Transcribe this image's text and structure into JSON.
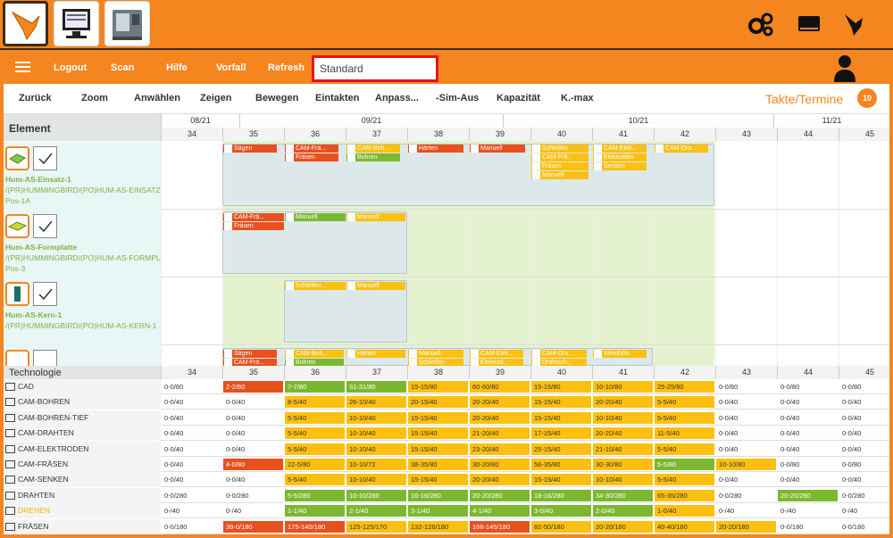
{
  "menu": {
    "logout": "Logout",
    "scan": "Scan",
    "help": "Hilfe",
    "vorfall": "Vorfall",
    "refresh": "Refresh",
    "view_value": "Standard"
  },
  "toolbar": {
    "zurueck": "Zurück",
    "zoom": "Zoom",
    "anwaehlen": "Anwählen",
    "zeigen": "Zeigen",
    "bewegen": "Bewegen",
    "eintakten": "Eintakten",
    "anpass": "Anpass...",
    "sim_aus": "-Sim-Aus",
    "kapazitaet": "Kapazität",
    "kmax": "K.-max",
    "takte": "Takte/Termine",
    "badge": "10"
  },
  "grid": {
    "element_header": "Element",
    "months": [
      "08/21",
      "09/21",
      "10/21",
      "11/21"
    ],
    "weeks": [
      "34",
      "35",
      "36",
      "37",
      "38",
      "39",
      "40",
      "41",
      "42",
      "43",
      "44",
      "45"
    ]
  },
  "elements": [
    {
      "name": "Hum-AS-Einsatz-1",
      "path": "/(PR)HUMMINGBIRD/(PO)HUM-AS-EINSATZ-1",
      "pos": "Pos-1A"
    },
    {
      "name": "Hum-AS-Formplatte",
      "path": "/(PR)HUMMINGBIRD/(PO)HUM-AS-FORMPLA",
      "pos": "Pos-3"
    },
    {
      "name": "Hum-AS-Kern-1",
      "path": "/(PR)HUMMINGBIRD/(PO)HUM-AS-KERN-1",
      "pos": ""
    }
  ],
  "tasks": {
    "r1": [
      "Sägen",
      "CAM-Frä...",
      "Fräsen",
      "CAM-Boh...",
      "Bohren",
      "Härten",
      "Manuell",
      "Schleifen",
      "CAM-Frä...",
      "Fräsen",
      "Manuell",
      "CAM-Elek...",
      "Elektroden",
      "Senken",
      "CAM-Dra..."
    ],
    "r2": [
      "CAM-Frä...",
      "Fräsen",
      "Manuell",
      "Manuell"
    ],
    "r3": [
      "Schleifen...",
      "Manuell"
    ],
    "r4": [
      "Sägen",
      "CAM-Frä...",
      "CAM-Boh...",
      "Bohren",
      "Härten",
      "Manuell",
      "Schleifen",
      "CAM-Elek...",
      "Elektrod...",
      "CAM-Dra...",
      "Drahtsch...",
      "WireEdm"
    ]
  },
  "technologie": {
    "header": "Technologie",
    "rows": [
      {
        "name": "CAD",
        "cells": [
          "0-0/80",
          "2-2/80",
          "7-7/80",
          "31-31/80",
          "15-15/80",
          "60-60/80",
          "15-15/80",
          "10-10/80",
          "25-25/80",
          "0-0/80",
          "0-0/80",
          "0-0/80"
        ]
      },
      {
        "name": "CAM-BOHREN",
        "cells": [
          "0-0/40",
          "0-0/40",
          "8-5/40",
          "26-10/40",
          "20-15/40",
          "20-20/40",
          "15-15/40",
          "20-20/40",
          "5-5/40",
          "0-0/40",
          "0-0/40",
          "0-0/40"
        ]
      },
      {
        "name": "CAM-BOHREN-TIEF",
        "cells": [
          "0-0/40",
          "0-0/40",
          "5-5/40",
          "10-10/40",
          "15-15/40",
          "20-20/40",
          "15-15/40",
          "10-10/40",
          "5-5/40",
          "0-0/40",
          "0-0/40",
          "0-0/40"
        ]
      },
      {
        "name": "CAM-DRAHTEN",
        "cells": [
          "0-0/40",
          "0-0/40",
          "5-5/40",
          "10-10/40",
          "15-15/40",
          "21-20/40",
          "17-15/40",
          "20-20/40",
          "11-5/40",
          "0-0/40",
          "0-0/40",
          "0-0/40"
        ]
      },
      {
        "name": "CAM-ELEKTRODEN",
        "cells": [
          "0-0/40",
          "0-0/40",
          "5-5/40",
          "10-10/40",
          "15-15/40",
          "23-20/40",
          "25-15/40",
          "21-10/40",
          "5-5/40",
          "0-0/40",
          "0-0/40",
          "0-0/40"
        ]
      },
      {
        "name": "CAM-FRÄSEN",
        "cells": [
          "0-0/40",
          "4-0/80",
          "22-5/80",
          "10-10/72",
          "38-35/80",
          "30-20/80",
          "56-35/80",
          "30-30/80",
          "5-5/80",
          "10-10/80",
          "0-0/80",
          "0-0/80"
        ]
      },
      {
        "name": "CAM-SENKEN",
        "cells": [
          "0-0/40",
          "0-0/40",
          "5-5/40",
          "10-10/40",
          "15-15/40",
          "20-20/40",
          "15-15/40",
          "10-10/40",
          "5-5/40",
          "0-0/40",
          "0-0/40",
          "0-0/40"
        ]
      },
      {
        "name": "DRAHTEN",
        "cells": [
          "0-0/280",
          "0-0/280",
          "5-5/280",
          "10-10/280",
          "16-16/280",
          "20-20/280",
          "18-16/280",
          "34-30/280",
          "65-35/280",
          "0-0/280",
          "20-20/280",
          "0-0/280"
        ]
      },
      {
        "name": "DREHEN",
        "cells": [
          "0-/40",
          "0-/40",
          "1-1/40",
          "2-1/40",
          "3-1/40",
          "4-1/40",
          "3-0/40",
          "2-0/40",
          "1-0/40",
          "0-/40",
          "0-/40",
          "0-/40"
        ]
      },
      {
        "name": "FRÄSEN",
        "cells": [
          "0-0/180",
          "39-0/180",
          "175-140/180",
          "125-125/170",
          "132-126/180",
          "166-145/180",
          "82-50/180",
          "20-20/180",
          "40-40/180",
          "20-20/180",
          "0-0/180",
          "0-0/180"
        ]
      }
    ]
  },
  "colors": {
    "brand": "#f5851f",
    "red": "#e8501e",
    "green": "#7cb82f",
    "yellow": "#fdc010",
    "highlight": "#e3141d"
  }
}
